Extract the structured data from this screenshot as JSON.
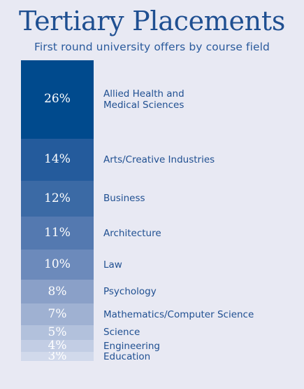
{
  "title": "Tertiary Placements",
  "subtitle": "First round university offers by course field",
  "chart_data": {
    "type": "bar",
    "stacked": true,
    "title": "Tertiary Placements",
    "subtitle": "First round university offers by course field",
    "categories": [
      "Allied Health and\nMedical Sciences",
      "Arts/Creative Industries",
      "Business",
      "Architecture",
      "Law",
      "Psychology",
      "Mathematics/Computer Science",
      "Science",
      "Engineering",
      "Education"
    ],
    "values": [
      26,
      14,
      12,
      11,
      10,
      8,
      7,
      5,
      4,
      3
    ],
    "value_labels": [
      "26%",
      "14%",
      "12%",
      "11%",
      "10%",
      "8%",
      "7%",
      "5%",
      "4%",
      "3%"
    ],
    "unit": "%",
    "colors": [
      "#004a8d",
      "#245b9c",
      "#3b6aa5",
      "#5479b0",
      "#6c8abb",
      "#8aa0c8",
      "#9fb1d2",
      "#b2c1dc",
      "#c2cde4",
      "#d1d9eb"
    ],
    "legend": "none",
    "grid": false
  }
}
